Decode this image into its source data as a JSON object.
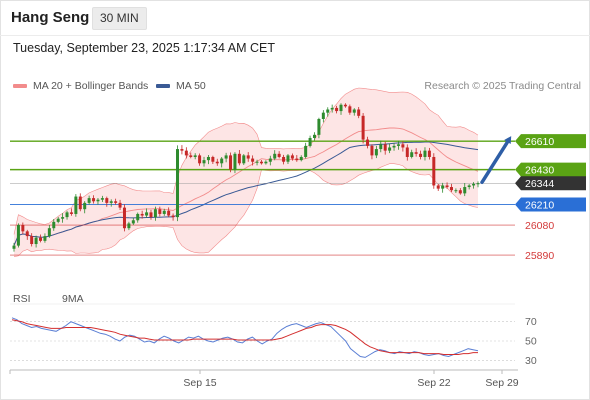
{
  "header": {
    "symbol": "Hang Seng",
    "timeframe": "30 MIN",
    "datetime": "Tuesday, September 23, 2025 1:17:34 AM CET"
  },
  "legend": {
    "bb_label": "MA 20 + Bollinger Bands",
    "ma50_label": "MA 50",
    "credit": "Research © 2025 Trading Central"
  },
  "rsi_legend": {
    "rsi_label": "RSI",
    "ma_label": "9MA"
  },
  "colors": {
    "bb": "#f28c8c",
    "bb_fill": "#fde0e0",
    "ma50": "#3a5a95",
    "candle_up": "#2e8b2e",
    "candle_down": "#c62828",
    "resistance": "#5aa314",
    "support_blue": "#2a6fd6",
    "support_red": "#d33a3a",
    "last_price": "#333333",
    "rsi": "#5b7fd4",
    "rsi_ma": "#d32f2f",
    "arrow": "#2e5ea6"
  },
  "chart_data": {
    "type": "candlestick",
    "instrument": "Hang Seng",
    "interval": "30 MIN",
    "ylim": [
      25720,
      26870
    ],
    "x_ticks": [
      "Sep 15",
      "Sep 22",
      "Sep 29"
    ],
    "levels": [
      {
        "value": 26610,
        "label": "26610",
        "kind": "resistance"
      },
      {
        "value": 26430,
        "label": "26430",
        "kind": "resistance"
      },
      {
        "value": 26344,
        "label": "26344",
        "kind": "last"
      },
      {
        "value": 26210,
        "label": "26210",
        "kind": "pivot"
      },
      {
        "value": 26080,
        "label": "26080",
        "kind": "support"
      },
      {
        "value": 25890,
        "label": "25890",
        "kind": "support"
      }
    ],
    "arrow": {
      "from": 26350,
      "to": 26610,
      "direction": "up"
    },
    "closes": [
      25950,
      26080,
      26040,
      26010,
      25960,
      26000,
      25980,
      26010,
      26060,
      26100,
      26120,
      26130,
      26160,
      26150,
      26260,
      26180,
      26220,
      26250,
      26230,
      26240,
      26250,
      26220,
      26230,
      26220,
      26190,
      26060,
      26090,
      26110,
      26150,
      26140,
      26160,
      26130,
      26180,
      26150,
      26170,
      26140,
      26130,
      26560,
      26550,
      26520,
      26510,
      26520,
      26470,
      26490,
      26510,
      26480,
      26470,
      26500,
      26520,
      26430,
      26530,
      26470,
      26520,
      26500,
      26480,
      26480,
      26470,
      26480,
      26500,
      26530,
      26510,
      26480,
      26520,
      26500,
      26490,
      26510,
      26580,
      26630,
      26650,
      26750,
      26790,
      26810,
      26820,
      26800,
      26840,
      26830,
      26790,
      26810,
      26770,
      26620,
      26580,
      26520,
      26560,
      26590,
      26550,
      26570,
      26580,
      26590,
      26570,
      26510,
      26540,
      26530,
      26510,
      26550,
      26510,
      26330,
      26310,
      26330,
      26320,
      26300,
      26300,
      26280,
      26320,
      26330,
      26340,
      26344
    ],
    "rsi": {
      "ylim": [
        20,
        80
      ],
      "ticks": [
        70,
        50,
        30
      ],
      "values": [
        74,
        72,
        68,
        66,
        64,
        65,
        63,
        62,
        61,
        60,
        63,
        66,
        70,
        68,
        66,
        64,
        62,
        60,
        58,
        57,
        55,
        52,
        50,
        54,
        56,
        55,
        52,
        49,
        50,
        48,
        52,
        55,
        53,
        50,
        48,
        51,
        54,
        53,
        55,
        52,
        50,
        49,
        51,
        53,
        54,
        52,
        49,
        48,
        52,
        54,
        50,
        47,
        50,
        52,
        58,
        62,
        65,
        67,
        68,
        66,
        64,
        66,
        68,
        69,
        67,
        65,
        60,
        55,
        50,
        42,
        38,
        34,
        33,
        36,
        39,
        41,
        40,
        38,
        37,
        39,
        38,
        37,
        39,
        38,
        36,
        35,
        36,
        37,
        35,
        34,
        36,
        38,
        40,
        42,
        41,
        40
      ],
      "ma": [
        72,
        71,
        70,
        68,
        67,
        66,
        65,
        64,
        63,
        63,
        63,
        64,
        64,
        64,
        64,
        64,
        64,
        63,
        62,
        61,
        60,
        59,
        57,
        56,
        55,
        54,
        53,
        53,
        52,
        51,
        51,
        51,
        51,
        51,
        51,
        51,
        51,
        52,
        52,
        52,
        52,
        52,
        52,
        52,
        52,
        52,
        51,
        51,
        51,
        51,
        51,
        51,
        51,
        51,
        52,
        53,
        55,
        57,
        59,
        61,
        63,
        64,
        66,
        67,
        67,
        67,
        66,
        64,
        62,
        59,
        55,
        51,
        47,
        44,
        42,
        40,
        39,
        38,
        38,
        38,
        38,
        38,
        38,
        38,
        37,
        37,
        37,
        37,
        36,
        36,
        36,
        36,
        37,
        37,
        38,
        38
      ]
    }
  }
}
